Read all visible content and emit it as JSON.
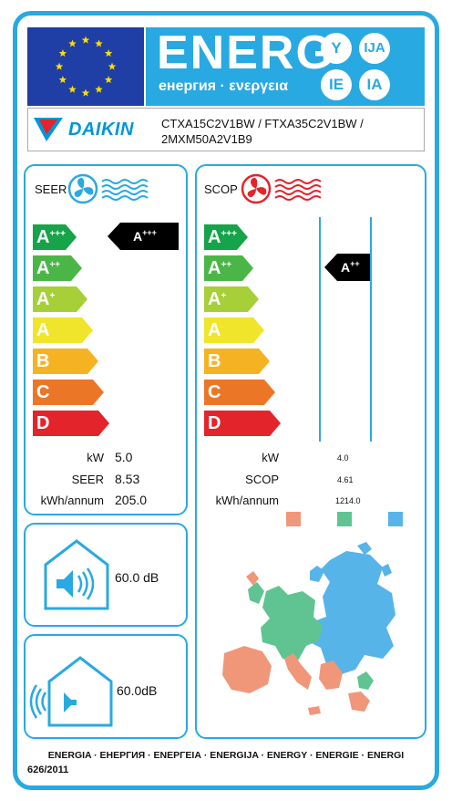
{
  "header": {
    "energy_word": "ENERG",
    "energy_subtitle": "енергия · ενεργεια",
    "lang_badges": [
      "Y",
      "IJA",
      "IE",
      "IA"
    ]
  },
  "supplier": {
    "brand": "DAIKIN",
    "model_line1": "CTXA15C2V1BW / FTXA35C2V1BW /",
    "model_line2": "2MXM50A2V1B9"
  },
  "scale": {
    "classes": [
      {
        "letter": "A",
        "plus": "+++",
        "color": "#16a34a"
      },
      {
        "letter": "A",
        "plus": "++",
        "color": "#4bb648"
      },
      {
        "letter": "A",
        "plus": "+",
        "color": "#a6cf38"
      },
      {
        "letter": "A",
        "plus": "",
        "color": "#f0e52a"
      },
      {
        "letter": "B",
        "plus": "",
        "color": "#f5b324"
      },
      {
        "letter": "C",
        "plus": "",
        "color": "#eb7726"
      },
      {
        "letter": "D",
        "plus": "",
        "color": "#e3242b"
      }
    ]
  },
  "cooling": {
    "title": "SEER",
    "rating_letter": "A",
    "rating_plus": "+++",
    "kw_label": "kW",
    "kw_value": "5.0",
    "seer_label": "SEER",
    "seer_value": "8.53",
    "annual_label": "kWh/annum",
    "annual_value": "205.0",
    "icon_color": "#29a9e1"
  },
  "heating": {
    "title": "SCOP",
    "rating_letter": "A",
    "rating_plus": "++",
    "kw_label": "kW",
    "kw_value": "4.0",
    "scop_label": "SCOP",
    "scop_value": "4.61",
    "annual_label": "kWh/annum",
    "annual_value": "1214.0",
    "icon_color": "#e3242b",
    "zone_colors": [
      "#f0977a",
      "#5fc491",
      "#56b4e9"
    ]
  },
  "sound": {
    "indoor_value": "60.0 dB",
    "outdoor_value": "60.0dB"
  },
  "footer": {
    "languages": "ENERGIA · ЕНЕРГИЯ · ΕΝΕΡΓΕΙΑ · ENERGIJA · ENERGY · ENERGIE · ENERGI",
    "regulation": "626/2011"
  }
}
